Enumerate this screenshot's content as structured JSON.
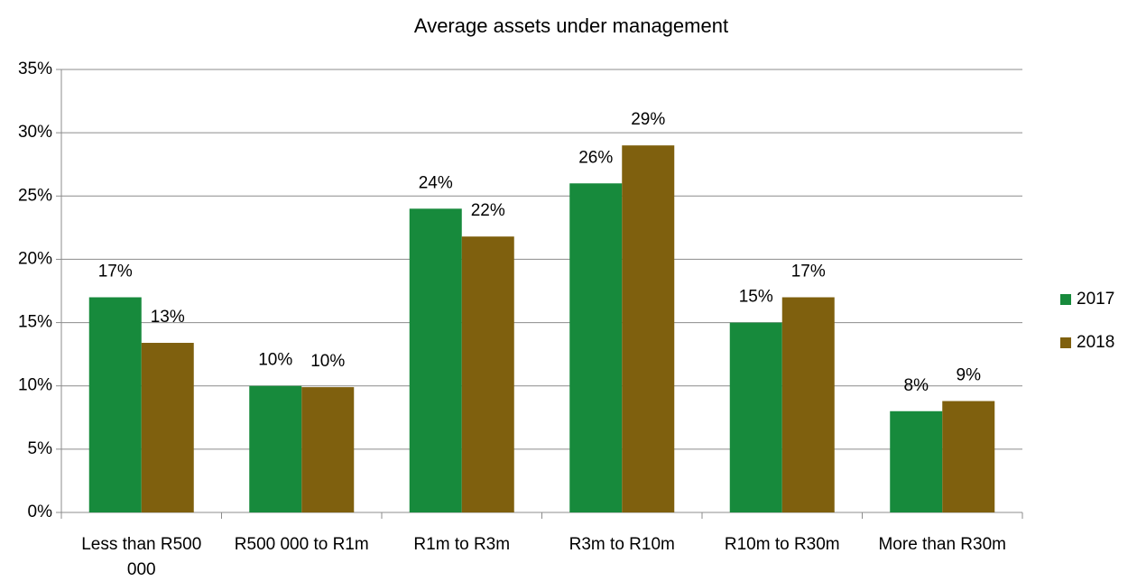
{
  "chart_data": {
    "type": "bar",
    "title": "Average assets under management",
    "categories": [
      "Less than R500 000",
      "R500 000 to R1m",
      "R1m to R3m",
      "R3m to R10m",
      "R10m to R30m",
      "More than R30m"
    ],
    "series": [
      {
        "name": "2017",
        "color": "#178a3c",
        "values": [
          17,
          10,
          24,
          26,
          15,
          8
        ],
        "value_labels": [
          "17%",
          "10%",
          "24%",
          "26%",
          "15%",
          "8%"
        ]
      },
      {
        "name": "2018",
        "color": "#7f600e",
        "values": [
          13.4,
          9.9,
          21.8,
          29,
          17,
          8.8
        ],
        "value_labels": [
          "13%",
          "10%",
          "22%",
          "29%",
          "17%",
          "9%"
        ]
      }
    ],
    "ylim": [
      0,
      35
    ],
    "yticks": [
      {
        "value": 0,
        "label": "0%"
      },
      {
        "value": 5,
        "label": "5%"
      },
      {
        "value": 10,
        "label": "10%"
      },
      {
        "value": 15,
        "label": "15%"
      },
      {
        "value": 20,
        "label": "20%"
      },
      {
        "value": 25,
        "label": "25%"
      },
      {
        "value": 30,
        "label": "30%"
      },
      {
        "value": 35,
        "label": "35%"
      }
    ],
    "grid": true,
    "legend": "right"
  }
}
